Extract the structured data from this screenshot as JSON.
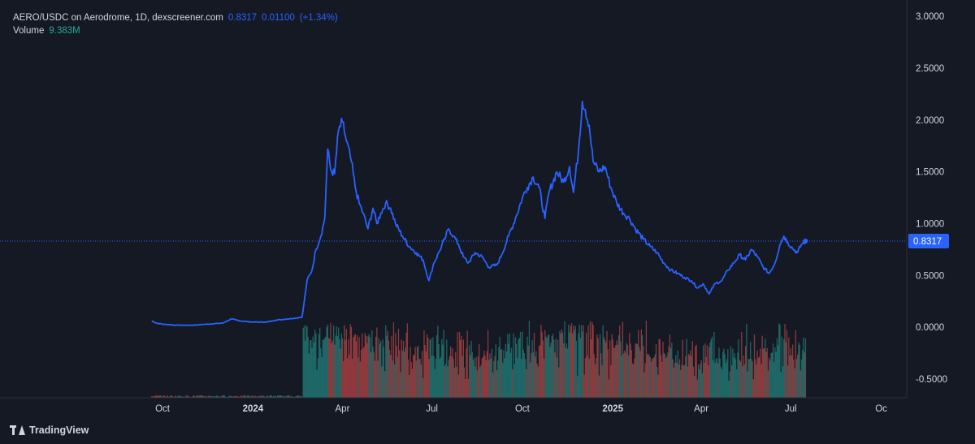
{
  "legend": {
    "symbol": "AERO/USDC on Aerodrome, 1D, dexscreener.com",
    "price": "0.8317",
    "change": "0.01100",
    "change_pct": "(+1.34%)",
    "volume_label": "Volume",
    "volume_value": "9.383M"
  },
  "branding": {
    "name": "TradingView",
    "icon": "tradingview-logo-icon"
  },
  "colors": {
    "background": "#151924",
    "price_line": "#2962ff",
    "volume_up": "#26a69a",
    "volume_down": "#ef5350",
    "text": "#d1d4dc",
    "last_price_tag": "#2962ff"
  },
  "chart_data": {
    "type": "line",
    "title": "AERO/USDC on Aerodrome, 1D, dexscreener.com",
    "interval": "1D",
    "y_ticks": [
      "3.0000",
      "2.5000",
      "2.0000",
      "1.5000",
      "1.0000",
      "0.5000",
      "0.0000",
      "-0.5000"
    ],
    "y_range": [
      -0.68,
      3.08
    ],
    "x_ticks": [
      "Oct",
      "2024",
      "Apr",
      "Jul",
      "Oct",
      "2025",
      "Apr",
      "Jul",
      "Oc"
    ],
    "x_tick_dates": [
      "2023-10-01",
      "2024-01-01",
      "2024-04-01",
      "2024-07-01",
      "2024-10-01",
      "2025-01-01",
      "2025-04-01",
      "2025-07-01",
      "2025-10-01"
    ],
    "last_price": 0.8317,
    "last_price_label": "0.8317",
    "grid": false,
    "series": [
      {
        "points": [
          [
            "2023-09-20",
            0.06
          ],
          [
            "2023-09-25",
            0.04
          ],
          [
            "2023-10-01",
            0.03
          ],
          [
            "2023-10-15",
            0.02
          ],
          [
            "2023-11-01",
            0.02
          ],
          [
            "2023-11-15",
            0.03
          ],
          [
            "2023-12-01",
            0.04
          ],
          [
            "2023-12-10",
            0.08
          ],
          [
            "2023-12-20",
            0.06
          ],
          [
            "2024-01-01",
            0.05
          ],
          [
            "2024-01-15",
            0.05
          ],
          [
            "2024-01-25",
            0.07
          ],
          [
            "2024-02-05",
            0.08
          ],
          [
            "2024-02-15",
            0.09
          ],
          [
            "2024-02-20",
            0.1
          ],
          [
            "2024-02-25",
            0.45
          ],
          [
            "2024-03-01",
            0.55
          ],
          [
            "2024-03-05",
            0.75
          ],
          [
            "2024-03-10",
            0.88
          ],
          [
            "2024-03-14",
            1.05
          ],
          [
            "2024-03-17",
            1.72
          ],
          [
            "2024-03-20",
            1.52
          ],
          [
            "2024-03-24",
            1.48
          ],
          [
            "2024-03-28",
            1.9
          ],
          [
            "2024-04-01",
            1.98
          ],
          [
            "2024-04-05",
            1.8
          ],
          [
            "2024-04-10",
            1.6
          ],
          [
            "2024-04-14",
            1.35
          ],
          [
            "2024-04-18",
            1.2
          ],
          [
            "2024-04-22",
            1.1
          ],
          [
            "2024-04-27",
            0.95
          ],
          [
            "2024-05-02",
            1.15
          ],
          [
            "2024-05-06",
            1.0
          ],
          [
            "2024-05-10",
            1.1
          ],
          [
            "2024-05-15",
            1.2
          ],
          [
            "2024-05-20",
            1.15
          ],
          [
            "2024-05-25",
            1.0
          ],
          [
            "2024-06-01",
            0.88
          ],
          [
            "2024-06-08",
            0.78
          ],
          [
            "2024-06-15",
            0.72
          ],
          [
            "2024-06-22",
            0.65
          ],
          [
            "2024-06-28",
            0.45
          ],
          [
            "2024-07-03",
            0.62
          ],
          [
            "2024-07-08",
            0.72
          ],
          [
            "2024-07-14",
            0.85
          ],
          [
            "2024-07-18",
            0.95
          ],
          [
            "2024-07-23",
            0.88
          ],
          [
            "2024-07-28",
            0.8
          ],
          [
            "2024-08-02",
            0.68
          ],
          [
            "2024-08-07",
            0.62
          ],
          [
            "2024-08-14",
            0.72
          ],
          [
            "2024-08-21",
            0.68
          ],
          [
            "2024-08-28",
            0.58
          ],
          [
            "2024-09-05",
            0.6
          ],
          [
            "2024-09-10",
            0.7
          ],
          [
            "2024-09-17",
            0.88
          ],
          [
            "2024-09-24",
            1.05
          ],
          [
            "2024-10-01",
            1.25
          ],
          [
            "2024-10-06",
            1.35
          ],
          [
            "2024-10-12",
            1.45
          ],
          [
            "2024-10-18",
            1.35
          ],
          [
            "2024-10-24",
            1.05
          ],
          [
            "2024-10-28",
            1.3
          ],
          [
            "2024-11-05",
            1.5
          ],
          [
            "2024-11-12",
            1.4
          ],
          [
            "2024-11-18",
            1.55
          ],
          [
            "2024-11-22",
            1.3
          ],
          [
            "2024-11-27",
            1.7
          ],
          [
            "2024-12-01",
            2.18
          ],
          [
            "2024-12-04",
            2.1
          ],
          [
            "2024-12-08",
            1.95
          ],
          [
            "2024-12-12",
            1.6
          ],
          [
            "2024-12-18",
            1.5
          ],
          [
            "2024-12-24",
            1.55
          ],
          [
            "2024-12-30",
            1.35
          ],
          [
            "2025-01-05",
            1.2
          ],
          [
            "2025-01-12",
            1.1
          ],
          [
            "2025-01-18",
            1.05
          ],
          [
            "2025-01-24",
            0.95
          ],
          [
            "2025-02-01",
            0.85
          ],
          [
            "2025-02-08",
            0.78
          ],
          [
            "2025-02-15",
            0.72
          ],
          [
            "2025-02-22",
            0.62
          ],
          [
            "2025-03-01",
            0.55
          ],
          [
            "2025-03-08",
            0.52
          ],
          [
            "2025-03-15",
            0.48
          ],
          [
            "2025-03-22",
            0.45
          ],
          [
            "2025-03-28",
            0.38
          ],
          [
            "2025-04-03",
            0.42
          ],
          [
            "2025-04-09",
            0.32
          ],
          [
            "2025-04-15",
            0.42
          ],
          [
            "2025-04-22",
            0.45
          ],
          [
            "2025-04-28",
            0.55
          ],
          [
            "2025-05-04",
            0.62
          ],
          [
            "2025-05-10",
            0.7
          ],
          [
            "2025-05-16",
            0.65
          ],
          [
            "2025-05-22",
            0.75
          ],
          [
            "2025-05-28",
            0.68
          ],
          [
            "2025-06-03",
            0.58
          ],
          [
            "2025-06-09",
            0.52
          ],
          [
            "2025-06-15",
            0.62
          ],
          [
            "2025-06-20",
            0.8
          ],
          [
            "2025-06-24",
            0.88
          ],
          [
            "2025-06-28",
            0.82
          ],
          [
            "2025-07-03",
            0.76
          ],
          [
            "2025-07-08",
            0.72
          ],
          [
            "2025-07-12",
            0.8
          ],
          [
            "2025-07-16",
            0.8317
          ]
        ]
      }
    ],
    "volume": {
      "label": "Volume",
      "last_value": "9.383M",
      "up_color": "#26a69a",
      "down_color": "#ef5350"
    }
  }
}
